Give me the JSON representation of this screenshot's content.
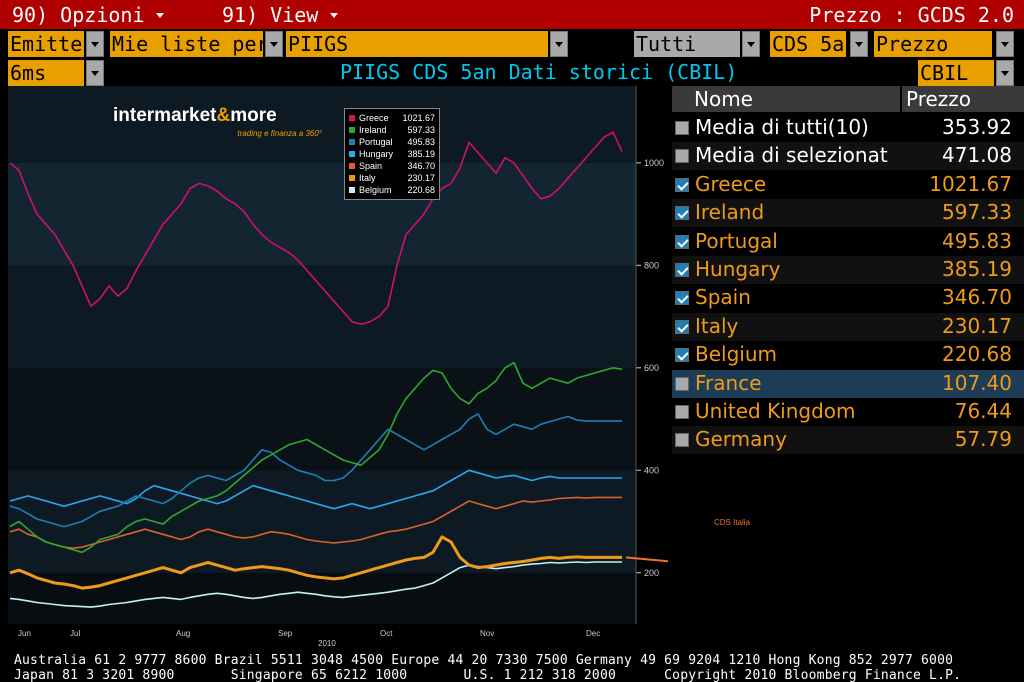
{
  "menubar": {
    "options_label": "90) Opzioni",
    "view_label": "91) View",
    "function_title": "Prezzo : GCDS 2.0"
  },
  "fields": {
    "emitter": "Emitte",
    "my_lists": "Mie liste pers",
    "list": "PIIGS",
    "scope": "Tutti",
    "tenor": "CDS 5a",
    "field": "Prezzo",
    "period": "6ms",
    "source": "CBIL"
  },
  "chart_title": "PIIGS CDS 5an Dati storici (CBIL)",
  "logo": {
    "brand_pre": "intermarket",
    "brand_amp": "&",
    "brand_post": "more",
    "tagline": "trading e finanza a 360°"
  },
  "annotation": "CDS Italia",
  "colors": {
    "Greece": "#d0106a",
    "Spain": "#e0602a",
    "Ireland": "#2ea82e",
    "Portugal": "#1f7fb5",
    "Italy": "#f09a1a",
    "Belgium": "#c8f0f0",
    "Hungary": "#2aa8f0"
  },
  "chart_data": {
    "type": "line",
    "x_ticks": [
      "Jun",
      "Jul",
      "Aug",
      "Sep",
      "Oct",
      "Nov",
      "Dec"
    ],
    "x_year": "2010",
    "y_ticks": [
      200,
      400,
      600,
      800,
      1000
    ],
    "ylim": [
      100,
      1150
    ],
    "series": [
      {
        "name": "Greece",
        "last": "1021.67",
        "values": [
          1000,
          985,
          940,
          900,
          880,
          860,
          830,
          800,
          760,
          720,
          735,
          760,
          740,
          755,
          790,
          820,
          850,
          880,
          900,
          920,
          950,
          960,
          955,
          945,
          930,
          920,
          905,
          880,
          860,
          845,
          835,
          825,
          810,
          790,
          770,
          750,
          730,
          710,
          690,
          685,
          690,
          700,
          720,
          800,
          860,
          880,
          900,
          930,
          950,
          960,
          990,
          1040,
          1020,
          1000,
          980,
          1010,
          1000,
          975,
          950,
          930,
          935,
          950,
          970,
          990,
          1010,
          1030,
          1050,
          1060,
          1022
        ]
      },
      {
        "name": "Ireland",
        "last": "597.33",
        "values": [
          290,
          300,
          285,
          270,
          260,
          255,
          250,
          245,
          240,
          250,
          265,
          270,
          275,
          290,
          300,
          305,
          300,
          295,
          310,
          320,
          330,
          340,
          345,
          350,
          360,
          375,
          390,
          405,
          420,
          430,
          440,
          450,
          455,
          460,
          450,
          440,
          430,
          420,
          415,
          410,
          425,
          440,
          470,
          510,
          540,
          560,
          580,
          595,
          590,
          560,
          540,
          530,
          550,
          560,
          575,
          600,
          610,
          570,
          560,
          570,
          580,
          575,
          570,
          580,
          585,
          590,
          595,
          600,
          597
        ]
      },
      {
        "name": "Portugal",
        "last": "495.83",
        "values": [
          330,
          325,
          315,
          305,
          300,
          295,
          290,
          295,
          300,
          310,
          320,
          325,
          330,
          340,
          350,
          345,
          340,
          335,
          345,
          360,
          375,
          385,
          390,
          385,
          380,
          390,
          400,
          420,
          440,
          435,
          420,
          410,
          400,
          395,
          390,
          380,
          380,
          385,
          400,
          420,
          440,
          460,
          480,
          470,
          460,
          450,
          440,
          450,
          460,
          470,
          480,
          500,
          510,
          480,
          470,
          480,
          490,
          485,
          480,
          490,
          495,
          500,
          505,
          498,
          496,
          496,
          496,
          496,
          496
        ]
      },
      {
        "name": "Hungary",
        "last": "385.19",
        "values": [
          340,
          345,
          350,
          345,
          340,
          335,
          330,
          335,
          340,
          345,
          350,
          345,
          340,
          335,
          345,
          360,
          370,
          365,
          360,
          355,
          350,
          345,
          340,
          335,
          340,
          350,
          360,
          370,
          365,
          360,
          355,
          350,
          345,
          340,
          335,
          330,
          325,
          330,
          335,
          330,
          325,
          330,
          335,
          340,
          345,
          350,
          355,
          360,
          370,
          380,
          390,
          400,
          395,
          390,
          385,
          388,
          390,
          385,
          380,
          385,
          388,
          385,
          385,
          385,
          385,
          385,
          385,
          385,
          385
        ]
      },
      {
        "name": "Spain",
        "last": "346.70",
        "values": [
          280,
          285,
          275,
          270,
          260,
          255,
          250,
          248,
          250,
          255,
          260,
          265,
          270,
          275,
          280,
          285,
          280,
          275,
          270,
          265,
          270,
          280,
          285,
          280,
          275,
          270,
          268,
          270,
          275,
          280,
          278,
          275,
          270,
          265,
          262,
          260,
          258,
          260,
          262,
          265,
          270,
          275,
          280,
          282,
          285,
          290,
          295,
          300,
          310,
          320,
          330,
          340,
          335,
          330,
          325,
          330,
          335,
          340,
          338,
          340,
          342,
          345,
          346,
          347,
          346,
          347,
          347,
          347,
          347
        ]
      },
      {
        "name": "Italy",
        "last": "230.17",
        "values": [
          200,
          205,
          198,
          190,
          185,
          180,
          178,
          175,
          170,
          172,
          175,
          180,
          185,
          190,
          195,
          200,
          205,
          210,
          205,
          200,
          210,
          215,
          220,
          215,
          210,
          205,
          208,
          210,
          212,
          210,
          208,
          205,
          200,
          195,
          192,
          190,
          188,
          190,
          195,
          200,
          205,
          210,
          215,
          220,
          225,
          228,
          230,
          240,
          270,
          260,
          230,
          215,
          210,
          212,
          215,
          218,
          220,
          222,
          225,
          228,
          230,
          228,
          230,
          231,
          230,
          230,
          230,
          230,
          230
        ]
      },
      {
        "name": "Belgium",
        "last": "220.68",
        "values": [
          150,
          148,
          145,
          142,
          140,
          138,
          136,
          135,
          134,
          133,
          135,
          138,
          140,
          142,
          145,
          148,
          150,
          152,
          150,
          148,
          152,
          155,
          158,
          160,
          158,
          155,
          152,
          150,
          152,
          155,
          158,
          160,
          162,
          160,
          158,
          155,
          153,
          152,
          154,
          156,
          158,
          160,
          162,
          165,
          168,
          170,
          175,
          180,
          190,
          200,
          210,
          215,
          212,
          210,
          208,
          210,
          212,
          215,
          217,
          218,
          220,
          219,
          220,
          221,
          220,
          221,
          221,
          221,
          221
        ]
      }
    ]
  },
  "table": {
    "headers": {
      "name": "Nome",
      "price": "Prezzo"
    },
    "rows": [
      {
        "name": "Media di tutti(10)",
        "price": "353.92",
        "checked": false,
        "style": "white"
      },
      {
        "name": "Media di selezionat",
        "price": "471.08",
        "checked": false,
        "style": "white"
      },
      {
        "name": "Greece",
        "price": "1021.67",
        "checked": true,
        "style": "orange"
      },
      {
        "name": "Ireland",
        "price": "597.33",
        "checked": true,
        "style": "orange"
      },
      {
        "name": "Portugal",
        "price": "495.83",
        "checked": true,
        "style": "orange"
      },
      {
        "name": "Hungary",
        "price": "385.19",
        "checked": true,
        "style": "orange"
      },
      {
        "name": "Spain",
        "price": "346.70",
        "checked": true,
        "style": "orange"
      },
      {
        "name": "Italy",
        "price": "230.17",
        "checked": true,
        "style": "orange"
      },
      {
        "name": "Belgium",
        "price": "220.68",
        "checked": true,
        "style": "orange"
      },
      {
        "name": "France",
        "price": "107.40",
        "checked": false,
        "style": "orange",
        "highlight": true
      },
      {
        "name": "United Kingdom",
        "price": "76.44",
        "checked": false,
        "style": "orange"
      },
      {
        "name": "Germany",
        "price": "57.79",
        "checked": false,
        "style": "orange"
      }
    ]
  },
  "footer": {
    "line1": "Australia 61 2 9777 8600 Brazil 5511 3048 4500 Europe 44 20 7330 7500 Germany 49 69 9204 1210 Hong Kong 852 2977 6000",
    "line2": "Japan 81 3 3201 8900       Singapore 65 6212 1000       U.S. 1 212 318 2000      Copyright 2010 Bloomberg Finance L.P."
  }
}
